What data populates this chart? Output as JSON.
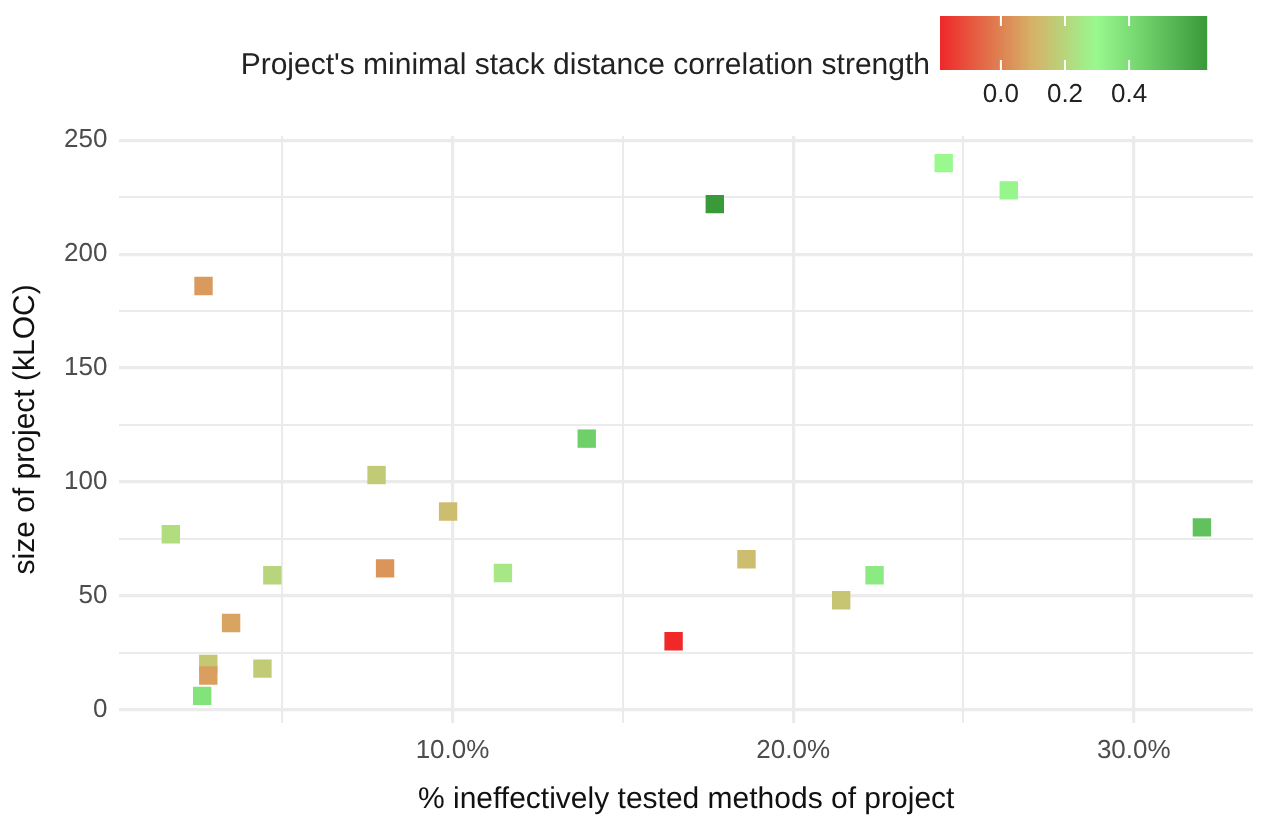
{
  "chart_data": {
    "type": "scatter",
    "legend_title": "Project's minimal stack distance correlation strength",
    "xlabel": "% ineffectively tested methods of project",
    "ylabel": "size of project (kLOC)",
    "x": [
      2.69,
      1.73,
      4.71,
      3.5,
      2.83,
      2.83,
      4.42,
      2.65,
      7.77,
      8.02,
      9.87,
      11.48,
      13.94,
      17.7,
      24.42,
      26.33,
      32.0,
      18.63,
      22.39,
      21.41,
      16.49
    ],
    "values": [
      186,
      77,
      59,
      38,
      20,
      15,
      18,
      6,
      103,
      62,
      87,
      60,
      119,
      222,
      240,
      228,
      80,
      66,
      59,
      48,
      30
    ],
    "cvalues": [
      0.05,
      0.22,
      0.2,
      0.07,
      0.16,
      0.06,
      0.17,
      0.38,
      0.17,
      0.04,
      0.13,
      0.25,
      0.45,
      0.64,
      0.3,
      0.31,
      0.5,
      0.13,
      0.35,
      0.15,
      -0.19
    ],
    "clim": [
      -0.19,
      0.64
    ],
    "cticks": [
      {
        "value": 0,
        "label": "0.0"
      },
      {
        "value": 0.2,
        "label": "0.2"
      },
      {
        "value": 0.4,
        "label": "0.4"
      }
    ],
    "xlim": [
      0.22,
      33.5
    ],
    "xticks": [
      {
        "value": 5,
        "label": null
      },
      {
        "value": 10,
        "label": "10.0%"
      },
      {
        "value": 15,
        "label": null
      },
      {
        "value": 20,
        "label": "20.0%"
      },
      {
        "value": 25,
        "label": null
      },
      {
        "value": 30,
        "label": "30.0%"
      }
    ],
    "ylim": [
      -5.8,
      251.9
    ],
    "yticks": [
      0,
      {
        "value": 25,
        "label": null
      },
      50,
      {
        "value": 75,
        "label": null
      },
      100,
      {
        "value": 125,
        "label": null
      },
      150,
      {
        "value": 175,
        "label": null
      },
      200,
      {
        "value": 225,
        "label": null
      },
      250
    ],
    "grid": true,
    "marker": "square"
  }
}
